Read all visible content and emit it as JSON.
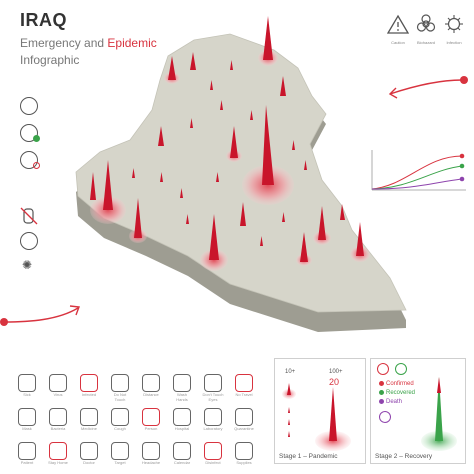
{
  "header": {
    "title": "IRAQ",
    "subtitle_prefix": "Emergency and ",
    "subtitle_highlight": "Epidemic",
    "subtitle_line2": "Infographic"
  },
  "warnings": [
    {
      "label": "Caution",
      "icon": "warning-triangle-icon"
    },
    {
      "label": "Biohazard",
      "icon": "biohazard-icon"
    },
    {
      "label": "Infection",
      "icon": "virus-icon"
    }
  ],
  "map": {
    "country": "Iraq",
    "fill_color": "#d6d5ca",
    "side_color": "#9e9d92",
    "spike_color": "#c9152b"
  },
  "stage1": {
    "level_low": "10+",
    "level_high": "100+",
    "count": "20",
    "label": "Stage 1 – Pandemic"
  },
  "stage2": {
    "legend": [
      {
        "label": "Confirmed",
        "color": "#d8333f"
      },
      {
        "label": "Recovered",
        "color": "#3aa34a"
      },
      {
        "label": "Death",
        "color": "#8e44ad"
      }
    ],
    "label": "Stage 2 – Recovery"
  },
  "icon_grid": [
    {
      "name": "sick-icon",
      "label": "Sick"
    },
    {
      "name": "virus-icon",
      "label": "Virus"
    },
    {
      "name": "infected-icon",
      "label": "Infected"
    },
    {
      "name": "no-contact-icon",
      "label": "Do Not Touch"
    },
    {
      "name": "social-distance-icon",
      "label": "Distance"
    },
    {
      "name": "wash-hands-icon",
      "label": "Wash Hands"
    },
    {
      "name": "eye-icon",
      "label": "Don't Touch Eyes"
    },
    {
      "name": "no-travel-icon",
      "label": "No Travel"
    },
    {
      "name": "mask-icon",
      "label": "Mask"
    },
    {
      "name": "bacteria-icon",
      "label": "Bacteria"
    },
    {
      "name": "pills-icon",
      "label": "Medicine"
    },
    {
      "name": "cough-icon",
      "label": "Cough"
    },
    {
      "name": "person-icon",
      "label": "Person"
    },
    {
      "name": "hospital-icon",
      "label": "Hospital"
    },
    {
      "name": "lab-icon",
      "label": "Laboratory"
    },
    {
      "name": "quarantine-icon",
      "label": "Quarantine"
    },
    {
      "name": "patient-icon",
      "label": "Patient"
    },
    {
      "name": "home-icon",
      "label": "Stay Home"
    },
    {
      "name": "doctor-icon",
      "label": "Doctor"
    },
    {
      "name": "target-icon",
      "label": "Target"
    },
    {
      "name": "head-icon",
      "label": "Headache"
    },
    {
      "name": "calendar-icon",
      "label": "Calendar"
    },
    {
      "name": "disinfect-icon",
      "label": "Disinfect"
    },
    {
      "name": "shopping-icon",
      "label": "Supplies"
    }
  ]
}
